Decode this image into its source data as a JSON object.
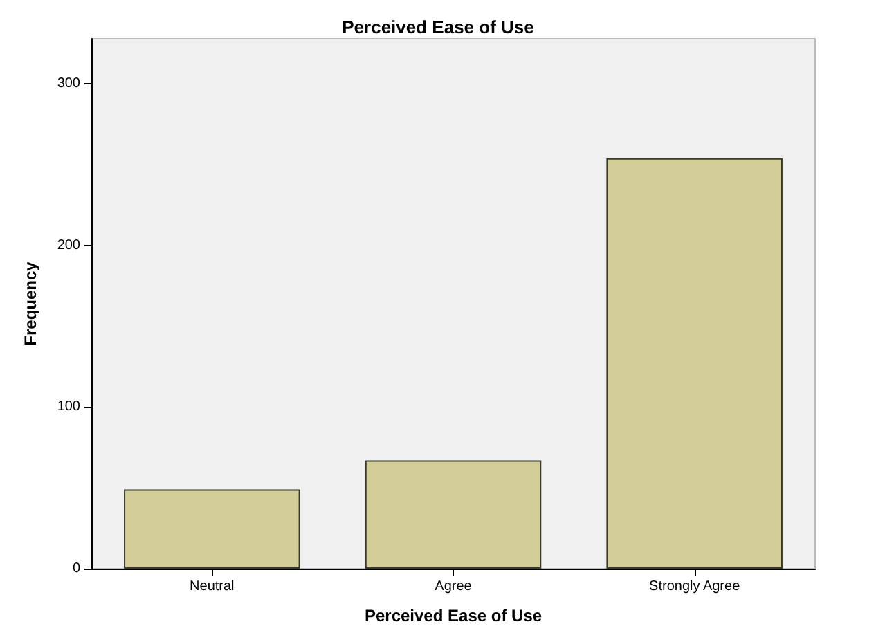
{
  "chart_data": {
    "type": "bar",
    "title": "Perceived Ease of Use",
    "xlabel": "Perceived Ease of Use",
    "ylabel": "Frequency",
    "categories": [
      "Neutral",
      "Agree",
      "Strongly Agree"
    ],
    "values": [
      49,
      67,
      254
    ],
    "color": "#d3ce97",
    "ylim": [
      0,
      328
    ],
    "yticks": [
      0,
      100,
      200,
      300
    ],
    "grid": false
  }
}
